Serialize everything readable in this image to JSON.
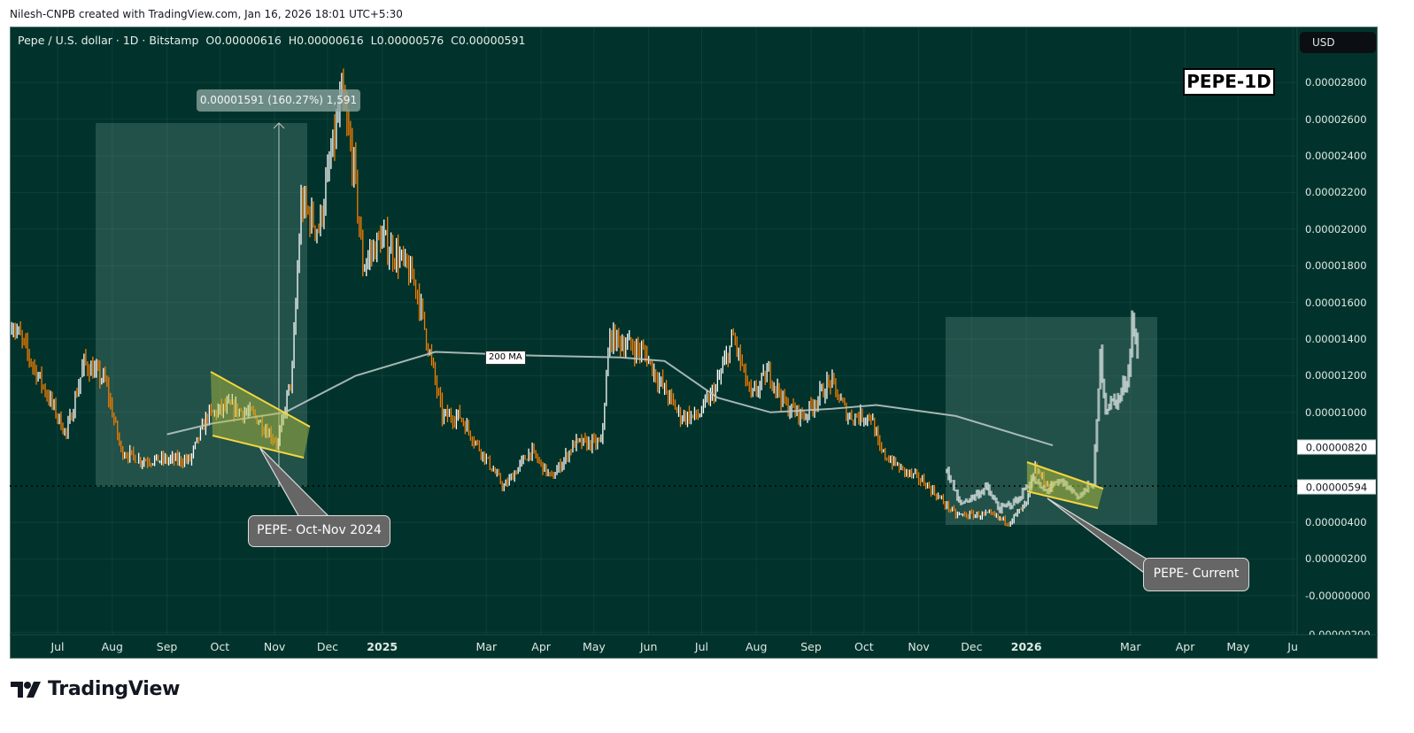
{
  "credit": "Nilesh-CNPB created with TradingView.com, Jan 16, 2026 18:01 UTC+5:30",
  "legend": {
    "symbol": "Pepe / U.S. dollar · 1D · Bitstamp",
    "open": "O0.00000616",
    "high": "H0.00000616",
    "low": "L0.00000576",
    "close": "C0.00000591"
  },
  "currency_button": "USD",
  "title_badge": "PEPE-1D",
  "measure_label": "0.00001591 (160.27%) 1,591",
  "ma_label": "200 MA",
  "callouts": {
    "past": "PEPE- Oct-Nov 2024",
    "current": "PEPE- Current"
  },
  "price_labels": {
    "ma": "0.00000820",
    "last": "0.00000594"
  },
  "footer_logo": "TradingView",
  "colors": {
    "background": "#01332c",
    "down_bar": "#f57c00",
    "up_bar": "#ffffff",
    "ma_line": "#b8c4c2",
    "pattern": "#f5d63d",
    "projection": "#d2dcdb"
  },
  "chart_data": {
    "type": "ohlc-bar",
    "title": "Pepe / U.S. dollar · 1D · Bitstamp",
    "y_ticks": [
      "0.00002800",
      "0.00002600",
      "0.00002400",
      "0.00002200",
      "0.00002000",
      "0.00001800",
      "0.00001600",
      "0.00001400",
      "0.00001200",
      "0.00001000",
      "0.00000400",
      "0.00000200",
      "-0.00000000",
      "-0.00000200"
    ],
    "y_tick_values": [
      2.8e-05,
      2.6e-05,
      2.4e-05,
      2.2e-05,
      2e-05,
      1.8e-05,
      1.6e-05,
      1.4e-05,
      1.2e-05,
      1e-05,
      4e-06,
      2e-06,
      0,
      -2e-06
    ],
    "ylim": [
      -2e-06,
      2.95e-05
    ],
    "x_ticks": [
      {
        "label": "Jul",
        "date": "2024-07-01"
      },
      {
        "label": "Aug",
        "date": "2024-08-01"
      },
      {
        "label": "Sep",
        "date": "2024-09-01"
      },
      {
        "label": "Oct",
        "date": "2024-10-01"
      },
      {
        "label": "Nov",
        "date": "2024-11-01"
      },
      {
        "label": "Dec",
        "date": "2024-12-01"
      },
      {
        "label": "2025",
        "date": "2025-01-01",
        "bold": true
      },
      {
        "label": "Mar",
        "date": "2025-03-01"
      },
      {
        "label": "Apr",
        "date": "2025-04-01"
      },
      {
        "label": "May",
        "date": "2025-05-01"
      },
      {
        "label": "Jun",
        "date": "2025-06-01"
      },
      {
        "label": "Jul",
        "date": "2025-07-01"
      },
      {
        "label": "Aug",
        "date": "2025-08-01"
      },
      {
        "label": "Sep",
        "date": "2025-09-01"
      },
      {
        "label": "Oct",
        "date": "2025-10-01"
      },
      {
        "label": "Nov",
        "date": "2025-11-01"
      },
      {
        "label": "Dec",
        "date": "2025-12-01"
      },
      {
        "label": "2026",
        "date": "2026-01-01",
        "bold": true
      },
      {
        "label": "Mar",
        "date": "2026-03-01"
      },
      {
        "label": "Apr",
        "date": "2026-04-01"
      },
      {
        "label": "May",
        "date": "2026-05-01"
      },
      {
        "label": "Ju",
        "date": "2026-06-01"
      }
    ],
    "price": [
      [
        "2024-06-05",
        1.5e-05
      ],
      [
        "2024-06-19",
        1.22e-05
      ],
      [
        "2024-07-06",
        8.8e-06
      ],
      [
        "2024-07-16",
        1.27e-05
      ],
      [
        "2024-07-28",
        1.17e-05
      ],
      [
        "2024-08-06",
        7.9e-06
      ],
      [
        "2024-08-17",
        7.4e-06
      ],
      [
        "2024-09-01",
        7.4e-06
      ],
      [
        "2024-09-14",
        7.4e-06
      ],
      [
        "2024-09-24",
        9.8e-06
      ],
      [
        "2024-10-06",
        1.03e-05
      ],
      [
        "2024-10-21",
        9.8e-06
      ],
      [
        "2024-11-03",
        8.3e-06
      ],
      [
        "2024-11-11",
        1.22e-05
      ],
      [
        "2024-11-16",
        2.14e-05
      ],
      [
        "2024-11-26",
        2e-05
      ],
      [
        "2024-12-09",
        2.72e-05
      ],
      [
        "2024-12-16",
        2.33e-05
      ],
      [
        "2024-12-21",
        1.8e-05
      ],
      [
        "2024-12-31",
        1.95e-05
      ],
      [
        "2025-01-10",
        1.85e-05
      ],
      [
        "2025-01-20",
        1.7e-05
      ],
      [
        "2025-01-30",
        1.22e-05
      ],
      [
        "2025-02-04",
        9.8e-06
      ],
      [
        "2025-02-14",
        9.8e-06
      ],
      [
        "2025-02-26",
        7.9e-06
      ],
      [
        "2025-03-11",
        5.9e-06
      ],
      [
        "2025-03-26",
        7.9e-06
      ],
      [
        "2025-04-07",
        6.4e-06
      ],
      [
        "2025-04-20",
        8.3e-06
      ],
      [
        "2025-05-05",
        8.3e-06
      ],
      [
        "2025-05-10",
        1.41e-05
      ],
      [
        "2025-05-20",
        1.37e-05
      ],
      [
        "2025-05-30",
        1.32e-05
      ],
      [
        "2025-06-07",
        1.17e-05
      ],
      [
        "2025-06-19",
        9.8e-06
      ],
      [
        "2025-06-29",
        9.8e-06
      ],
      [
        "2025-07-09",
        1.13e-05
      ],
      [
        "2025-07-19",
        1.41e-05
      ],
      [
        "2025-07-29",
        1.08e-05
      ],
      [
        "2025-08-08",
        1.22e-05
      ],
      [
        "2025-08-18",
        1.03e-05
      ],
      [
        "2025-08-28",
        9.8e-06
      ],
      [
        "2025-09-12",
        1.17e-05
      ],
      [
        "2025-09-22",
        9.8e-06
      ],
      [
        "2025-10-05",
        9.8e-06
      ],
      [
        "2025-10-10",
        7.9e-06
      ],
      [
        "2025-10-22",
        6.9e-06
      ],
      [
        "2025-11-04",
        6.2e-06
      ],
      [
        "2025-11-12",
        5.4e-06
      ],
      [
        "2025-11-22",
        4.4e-06
      ],
      [
        "2025-12-02",
        4.4e-06
      ],
      [
        "2025-12-12",
        4.4e-06
      ],
      [
        "2025-12-22",
        4e-06
      ],
      [
        "2026-01-01",
        5e-06
      ],
      [
        "2026-01-06",
        6.9e-06
      ],
      [
        "2026-01-14",
        5.9e-06
      ],
      [
        "2026-01-16",
        5.9e-06
      ]
    ],
    "ma200": [
      [
        "2024-09-01",
        8.8e-06
      ],
      [
        "2024-09-27",
        9.4e-06
      ],
      [
        "2024-11-07",
        1e-05
      ],
      [
        "2024-12-17",
        1.2e-05
      ],
      [
        "2025-01-31",
        1.33e-05
      ],
      [
        "2025-03-27",
        1.31e-05
      ],
      [
        "2025-05-16",
        1.3e-05
      ],
      [
        "2025-06-10",
        1.28e-05
      ],
      [
        "2025-07-10",
        1.08e-05
      ],
      [
        "2025-08-09",
        1e-05
      ],
      [
        "2025-09-13",
        1.02e-05
      ],
      [
        "2025-10-08",
        1.04e-05
      ],
      [
        "2025-11-22",
        9.8e-06
      ],
      [
        "2026-01-16",
        8.2e-06
      ]
    ],
    "projection": [
      [
        "2025-11-17",
        6.9e-06
      ],
      [
        "2025-11-24",
        5e-06
      ],
      [
        "2025-12-02",
        5.4e-06
      ],
      [
        "2025-12-09",
        5.9e-06
      ],
      [
        "2025-12-17",
        4.7e-06
      ],
      [
        "2025-12-27",
        5.2e-06
      ],
      [
        "2026-01-04",
        6.4e-06
      ],
      [
        "2026-01-11",
        5.7e-06
      ],
      [
        "2026-01-21",
        6.2e-06
      ],
      [
        "2026-01-31",
        5.4e-06
      ],
      [
        "2026-02-08",
        6.2e-06
      ],
      [
        "2026-02-10",
        9.3e-06
      ],
      [
        "2026-02-12",
        1.31e-05
      ],
      [
        "2026-02-15",
        1.03e-05
      ],
      [
        "2026-02-23",
        1.08e-05
      ],
      [
        "2026-02-28",
        1.22e-05
      ],
      [
        "2026-03-02",
        1.51e-05
      ],
      [
        "2026-03-05",
        1.31e-05
      ]
    ],
    "ma_value": 8.2e-06,
    "last_price": 5.94e-06,
    "grid": true
  }
}
